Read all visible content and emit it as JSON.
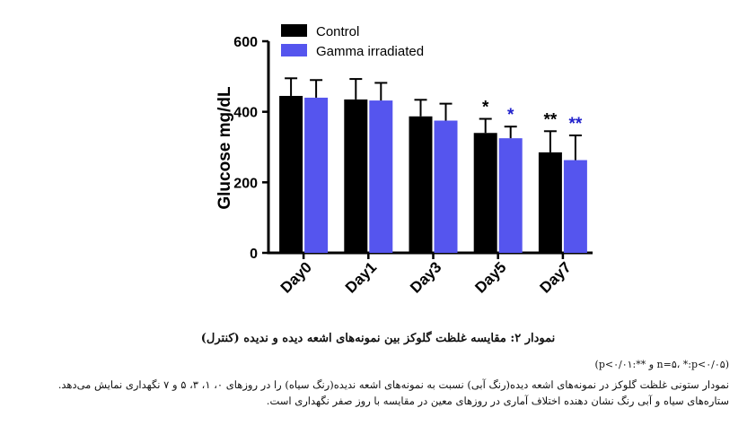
{
  "chart_data": {
    "type": "bar",
    "categories": [
      "Day0",
      "Day1",
      "Day3",
      "Day5",
      "Day7"
    ],
    "series": [
      {
        "name": "Control",
        "color": "#000000",
        "values": [
          445,
          435,
          387,
          340,
          285
        ],
        "errors": [
          50,
          58,
          47,
          40,
          60
        ],
        "significance": [
          "",
          "",
          "",
          "*",
          "**"
        ]
      },
      {
        "name": "Gamma irradiated",
        "color": "#5555ee",
        "values": [
          440,
          432,
          375,
          325,
          263
        ],
        "errors": [
          50,
          50,
          48,
          33,
          70
        ],
        "significance": [
          "",
          "",
          "",
          "*",
          "**"
        ]
      }
    ],
    "ylabel": "Glucose mg/dL",
    "xlabel": "",
    "ylim": [
      0,
      600
    ],
    "yticks": [
      0,
      200,
      400,
      600
    ],
    "legend": "top-left",
    "significance_colors": {
      "Control": "#000000",
      "Gamma irradiated": "#2222cc"
    }
  },
  "caption": {
    "title": "نمودار ۲: مقایسه غلظت گلوکز بین نمونه‌های اشعه دیده و ندیده (کنترل)",
    "stats": "(n=۵، *:p<۰/۰۵ و **:p<۰/۰۱)",
    "description": "نمودار ستونی غلظت گلوکز در نمونه‌های اشعه دیده(رنگ آبی) نسبت به نمونه‌های اشعه ندیده(رنگ سیاه) را در روزهای ۰، ۱، ۳، ۵ و ۷ نگهداری نمایش می‌دهد. ستاره‌های سیاه و آبی رنگ نشان دهنده اختلاف آماری در روزهای معین در مقایسه با روز صفر نگهداری است."
  }
}
